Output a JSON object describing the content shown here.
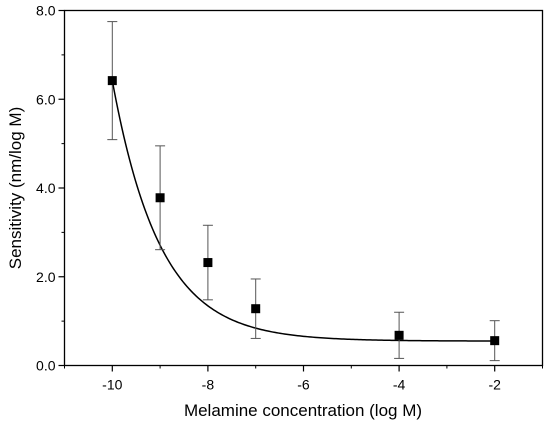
{
  "chart_data": {
    "type": "scatter",
    "title": "",
    "xlabel": "Melamine concentration (log M)",
    "ylabel": "Sensitivity (nm/log M)",
    "xlim": [
      -11,
      -1
    ],
    "ylim": [
      0,
      8
    ],
    "x_ticks": [
      -10,
      -8,
      -6,
      -4,
      -2
    ],
    "x_tick_labels": [
      "-10",
      "-8",
      "-6",
      "-4",
      "-2"
    ],
    "y_ticks": [
      0,
      2,
      4,
      6,
      8
    ],
    "y_tick_labels": [
      "0.0",
      "2.0",
      "4.0",
      "6.0",
      "8.0"
    ],
    "grid": false,
    "series": [
      {
        "marker": "square",
        "color": "#000000",
        "x": [
          -10,
          -9,
          -8,
          -7,
          -4,
          -2
        ],
        "y": [
          6.42,
          3.78,
          2.32,
          1.28,
          0.68,
          0.56
        ],
        "error": [
          1.33,
          1.17,
          0.84,
          0.67,
          0.52,
          0.45
        ]
      }
    ],
    "fit_curve": {
      "type": "exponential decay",
      "color": "#000000",
      "y0": 0.55,
      "A": 5.87,
      "t": 1.0,
      "x_ref": -10
    }
  }
}
